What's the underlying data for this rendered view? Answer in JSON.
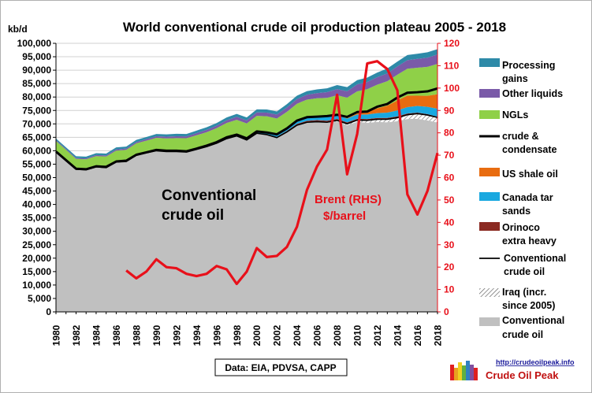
{
  "chart_data": {
    "type": "area",
    "title": "World  conventional  crude oil production  plateau  2005 - 2018",
    "ylabel": "kb/d",
    "ylim": [
      0,
      100000
    ],
    "y_ticks": [
      "0",
      "5,000",
      "10,000",
      "15,000",
      "20,000",
      "25,000",
      "30,000",
      "35,000",
      "40,000",
      "45,000",
      "50,000",
      "55,000",
      "60,000",
      "65,000",
      "70,000",
      "75,000",
      "80,000",
      "85,000",
      "90,000",
      "95,000",
      "100,000"
    ],
    "y2lim": [
      0,
      120
    ],
    "y2_ticks": [
      "0",
      "10",
      "20",
      "30",
      "40",
      "50",
      "60",
      "70",
      "80",
      "90",
      "100",
      "110",
      "120"
    ],
    "x": [
      1980,
      1981,
      1982,
      1983,
      1984,
      1985,
      1986,
      1987,
      1988,
      1989,
      1990,
      1991,
      1992,
      1993,
      1994,
      1995,
      1996,
      1997,
      1998,
      1999,
      2000,
      2001,
      2002,
      2003,
      2004,
      2005,
      2006,
      2007,
      2008,
      2009,
      2010,
      2011,
      2012,
      2013,
      2014,
      2015,
      2016,
      2017,
      2018
    ],
    "x_ticks": [
      "1980",
      "1982",
      "1984",
      "1986",
      "1988",
      "1990",
      "1992",
      "1994",
      "1996",
      "1998",
      "2000",
      "2002",
      "2004",
      "2006",
      "2008",
      "2010",
      "2012",
      "2014",
      "2016",
      "2018"
    ],
    "stack_order": [
      "Conventional crude oil",
      "Iraq (incr. since 2005)",
      "Orinoco extra heavy",
      "Canada tar sands",
      "US shale oil",
      "NGLs",
      "Other liquids",
      "Processing gains"
    ],
    "series": [
      {
        "name": "Conventional crude oil",
        "kind": "area",
        "color": "#c0c0c0",
        "values": [
          59500,
          56300,
          53100,
          52900,
          54000,
          53700,
          55800,
          56000,
          58300,
          59200,
          60000,
          59700,
          59700,
          59500,
          60500,
          61500,
          62800,
          64500,
          65500,
          64000,
          66500,
          66000,
          64900,
          67000,
          69500,
          70600,
          70700,
          70400,
          70900,
          69500,
          70800,
          70400,
          70700,
          70600,
          71000,
          71800,
          71900,
          71300,
          70500
        ]
      },
      {
        "name": "Iraq (incr. since 2005)",
        "kind": "area",
        "color": "#d9d9d9",
        "pattern": "hatch",
        "values": [
          0,
          0,
          0,
          0,
          0,
          0,
          0,
          0,
          0,
          0,
          0,
          0,
          0,
          0,
          0,
          0,
          0,
          0,
          0,
          0,
          0,
          0,
          0,
          0,
          0,
          0,
          100,
          200,
          400,
          500,
          600,
          900,
          1000,
          1100,
          1300,
          1600,
          1900,
          2000,
          1900
        ]
      },
      {
        "name": "Orinoco extra heavy",
        "kind": "area",
        "color": "#8b2a22",
        "values": [
          0,
          0,
          0,
          0,
          0,
          0,
          0,
          0,
          0,
          0,
          0,
          0,
          0,
          0,
          0,
          0,
          0,
          0,
          0,
          0,
          100,
          200,
          300,
          400,
          500,
          550,
          600,
          600,
          550,
          550,
          500,
          500,
          500,
          500,
          500,
          450,
          400,
          350,
          250
        ]
      },
      {
        "name": "Canada tar sands",
        "kind": "area",
        "color": "#19a8e0",
        "values": [
          150,
          150,
          150,
          200,
          200,
          250,
          250,
          250,
          250,
          250,
          300,
          300,
          300,
          350,
          350,
          400,
          400,
          450,
          500,
          550,
          600,
          650,
          700,
          800,
          1000,
          1100,
          1150,
          1300,
          1300,
          1400,
          1600,
          1700,
          1800,
          2000,
          2200,
          2400,
          2500,
          2700,
          3000
        ]
      },
      {
        "name": "US shale oil",
        "kind": "area",
        "color": "#e86c10",
        "values": [
          0,
          0,
          0,
          0,
          0,
          0,
          0,
          0,
          0,
          0,
          0,
          0,
          0,
          0,
          0,
          0,
          0,
          0,
          0,
          0,
          0,
          0,
          0,
          0,
          0,
          0,
          0,
          0,
          0,
          100,
          400,
          900,
          1800,
          2600,
          3700,
          4300,
          3800,
          4100,
          5400
        ]
      },
      {
        "name": "NGLs",
        "kind": "area",
        "color": "#8fd048",
        "values": [
          4000,
          3900,
          3700,
          3700,
          3800,
          3900,
          4000,
          4100,
          4200,
          4300,
          4500,
          4600,
          4700,
          4800,
          4900,
          5000,
          5200,
          5400,
          5500,
          5600,
          5800,
          6000,
          6100,
          6300,
          6500,
          6800,
          7000,
          7200,
          7500,
          7700,
          8200,
          8500,
          8800,
          9100,
          9600,
          10000,
          10400,
          10800,
          11300
        ]
      },
      {
        "name": "Other liquids",
        "kind": "area",
        "color": "#7a5aa8",
        "values": [
          300,
          300,
          350,
          350,
          400,
          400,
          450,
          450,
          500,
          550,
          600,
          650,
          700,
          700,
          800,
          850,
          900,
          1000,
          1100,
          1150,
          1250,
          1350,
          1450,
          1600,
          1700,
          1800,
          1900,
          2100,
          2300,
          2400,
          2600,
          2700,
          2800,
          2900,
          3100,
          3200,
          3300,
          3400,
          3500
        ]
      },
      {
        "name": "Processing gains",
        "kind": "area",
        "color": "#2e8aa8",
        "values": [
          600,
          600,
          650,
          650,
          700,
          700,
          750,
          750,
          800,
          800,
          850,
          850,
          900,
          900,
          950,
          1000,
          1000,
          1050,
          1100,
          1100,
          1150,
          1150,
          1200,
          1250,
          1300,
          1350,
          1400,
          1450,
          1500,
          1550,
          1600,
          1650,
          1700,
          1800,
          1800,
          1900,
          1900,
          2000,
          2000
        ]
      },
      {
        "name": "crude & condensate",
        "kind": "line",
        "color": "#000000",
        "values": [
          59700,
          56500,
          53300,
          53100,
          54200,
          54000,
          56000,
          56300,
          58500,
          59400,
          60300,
          60000,
          60000,
          59800,
          60800,
          61900,
          63200,
          65000,
          66000,
          64600,
          67200,
          66800,
          66100,
          68300,
          71200,
          72500,
          72700,
          72900,
          73400,
          72600,
          74400,
          74600,
          76400,
          77400,
          79800,
          81600,
          81800,
          82100,
          83200
        ]
      },
      {
        "name": "Conventional crude oil",
        "kind": "line",
        "color": "#000000",
        "values": [
          59500,
          56300,
          53100,
          52900,
          54000,
          53700,
          55800,
          56000,
          58300,
          59200,
          60000,
          59700,
          59700,
          59500,
          60500,
          61500,
          62800,
          64500,
          65500,
          64000,
          66500,
          66000,
          64900,
          67000,
          69500,
          70600,
          70800,
          70600,
          71300,
          70000,
          71400,
          71300,
          71700,
          71700,
          72300,
          73400,
          73800,
          73300,
          72400
        ]
      },
      {
        "name": "Brent (RHS) $/barrel",
        "kind": "line",
        "axis": "right",
        "color": "#e8101a",
        "x": [
          1987,
          1988,
          1989,
          1990,
          1991,
          1992,
          1993,
          1994,
          1995,
          1996,
          1997,
          1998,
          1999,
          2000,
          2001,
          2002,
          2003,
          2004,
          2005,
          2006,
          2007,
          2008,
          2009,
          2010,
          2011,
          2012,
          2013,
          2014,
          2015,
          2016,
          2017,
          2018
        ],
        "values": [
          18.5,
          15,
          18,
          23.5,
          20,
          19.5,
          17,
          16,
          17,
          20.5,
          19,
          12.5,
          18,
          28.5,
          24.5,
          25,
          29,
          38,
          54.5,
          65,
          72.5,
          97,
          61.5,
          79.5,
          111,
          112,
          108.5,
          99,
          52.5,
          43.5,
          54,
          71
        ]
      }
    ],
    "legend": [
      "Processing gains",
      "Other liquids",
      "NGLs",
      "crude & condensate",
      "US shale oil",
      "Canada tar sands",
      "Orinoco extra heavy",
      "Conventional crude oil",
      "Iraq (incr. since 2005)",
      "Conventional crude oil"
    ],
    "annotations": {
      "area_label": "Conventional crude oil",
      "brent_label": "Brent (RHS) $/barrel",
      "source": "Data: EIA, PDVSA, CAPP",
      "logo_url": "http://crudeoilpeak.info",
      "logo_name": "Crude Oil Peak"
    },
    "legend_placement": "right",
    "grid": true
  },
  "ui": {
    "title": "World  conventional  crude oil production  plateau  2005 - 2018",
    "unit": "kb/d",
    "big_label_1": "Conventional",
    "big_label_2": "crude oil",
    "brent_label_1": "Brent (RHS)",
    "brent_label_2": "$/barrel",
    "source": "Data: EIA, PDVSA, CAPP",
    "logo_url": "http://crudeoilpeak.info",
    "logo_name": "Crude Oil Peak",
    "legend_lines": {
      "processing_1": "Processing",
      "processing_2": "gains",
      "other": "Other liquids",
      "ngls": "NGLs",
      "cc_1": "crude &",
      "cc_2": "condensate",
      "shale": "US shale oil",
      "tar_1": "Canada tar",
      "tar_2": "sands",
      "orinoco_1": "Orinoco",
      "orinoco_2": "extra heavy",
      "conv_line_1": "Conventional",
      "conv_line_2": "crude oil",
      "iraq_1": "Iraq (incr.",
      "iraq_2": "since 2005)",
      "conv_area_1": "Conventional",
      "conv_area_2": "crude oil"
    }
  }
}
